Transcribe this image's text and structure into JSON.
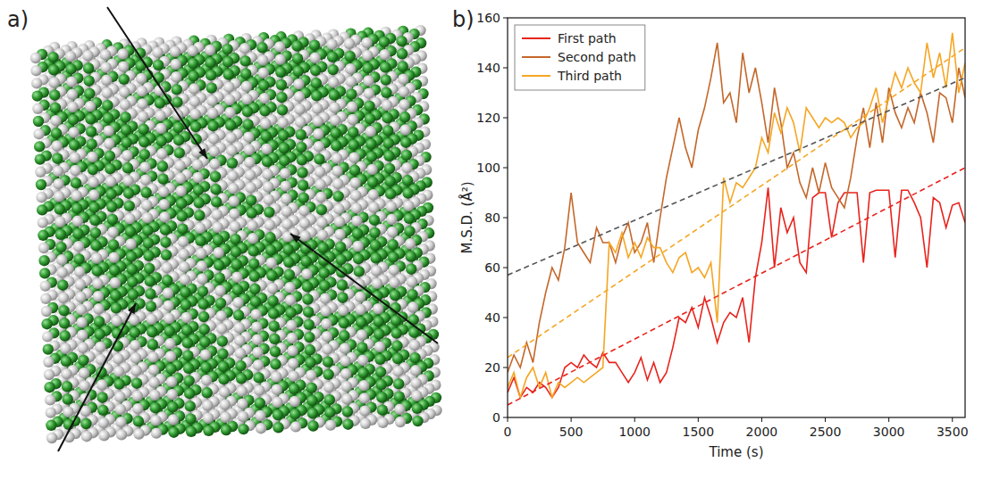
{
  "structure": {
    "panel_label": "a)"
  },
  "chart_data": {
    "type": "line",
    "panel_label": "b)",
    "x_label": "Time (s)",
    "y_label": "M.S.D. (Å²)",
    "xlim": [
      0,
      3600
    ],
    "xticks": [
      0,
      500,
      1000,
      1500,
      2000,
      2500,
      3000,
      3500
    ],
    "ylim": [
      0,
      160
    ],
    "yticks": [
      0,
      20,
      40,
      60,
      80,
      100,
      120,
      140,
      160
    ],
    "grid": false,
    "legend": "upper left",
    "x": [
      0,
      50,
      100,
      150,
      200,
      250,
      300,
      350,
      400,
      450,
      500,
      550,
      600,
      650,
      700,
      750,
      800,
      850,
      900,
      950,
      1000,
      1050,
      1100,
      1150,
      1200,
      1250,
      1300,
      1350,
      1400,
      1450,
      1500,
      1550,
      1600,
      1650,
      1700,
      1750,
      1800,
      1850,
      1900,
      1950,
      2000,
      2050,
      2100,
      2150,
      2200,
      2250,
      2300,
      2350,
      2400,
      2450,
      2500,
      2550,
      2600,
      2650,
      2700,
      2750,
      2800,
      2850,
      2900,
      2950,
      3000,
      3050,
      3100,
      3150,
      3200,
      3250,
      3300,
      3350,
      3400,
      3450,
      3500,
      3550,
      3600
    ],
    "series": [
      {
        "name": "First path",
        "color": "#e8231c",
        "line_style": "solid",
        "values": [
          10,
          16,
          8,
          12,
          10,
          14,
          12,
          8,
          12,
          20,
          22,
          20,
          25,
          22,
          20,
          26,
          22,
          22,
          18,
          14,
          18,
          24,
          15,
          22,
          14,
          18,
          28,
          40,
          38,
          44,
          36,
          48,
          40,
          30,
          38,
          42,
          40,
          48,
          30,
          56,
          70,
          92,
          60,
          84,
          74,
          80,
          62,
          58,
          88,
          90,
          90,
          72,
          86,
          90,
          90,
          90,
          62,
          90,
          91,
          91,
          91,
          64,
          91,
          91,
          86,
          80,
          60,
          88,
          86,
          76,
          85,
          86,
          78
        ]
      },
      {
        "name": "Second path",
        "color": "#c4672a",
        "line_style": "solid",
        "values": [
          18,
          25,
          20,
          30,
          22,
          38,
          50,
          60,
          55,
          68,
          90,
          70,
          66,
          62,
          76,
          70,
          70,
          62,
          72,
          78,
          66,
          70,
          78,
          62,
          80,
          96,
          108,
          120,
          108,
          100,
          115,
          124,
          136,
          150,
          126,
          130,
          118,
          146,
          130,
          140,
          126,
          110,
          132,
          118,
          100,
          106,
          94,
          88,
          100,
          90,
          102,
          92,
          88,
          84,
          96,
          112,
          124,
          108,
          126,
          110,
          132,
          122,
          116,
          124,
          118,
          130,
          122,
          110,
          130,
          128,
          118,
          140,
          128
        ]
      },
      {
        "name": "Third path",
        "color": "#f5a623",
        "line_style": "solid",
        "values": [
          12,
          18,
          8,
          16,
          20,
          12,
          18,
          8,
          14,
          12,
          14,
          16,
          14,
          16,
          18,
          20,
          70,
          66,
          74,
          64,
          70,
          64,
          72,
          68,
          68,
          62,
          58,
          64,
          66,
          58,
          60,
          56,
          62,
          38,
          96,
          86,
          94,
          92,
          96,
          100,
          112,
          106,
          122,
          114,
          124,
          118,
          106,
          124,
          120,
          116,
          120,
          118,
          120,
          118,
          112,
          116,
          118,
          124,
          132,
          118,
          128,
          138,
          132,
          140,
          134,
          130,
          150,
          136,
          146,
          132,
          154,
          130,
          142
        ]
      },
      {
        "color": "#555555",
        "line_style": "dashed",
        "x": [
          0,
          3600
        ],
        "values": [
          57,
          136
        ]
      },
      {
        "color": "#f5a623",
        "line_style": "dashed",
        "x": [
          0,
          3600
        ],
        "values": [
          24,
          148
        ]
      },
      {
        "color": "#e8231c",
        "line_style": "dashed",
        "x": [
          0,
          3600
        ],
        "values": [
          5,
          100
        ]
      }
    ]
  }
}
